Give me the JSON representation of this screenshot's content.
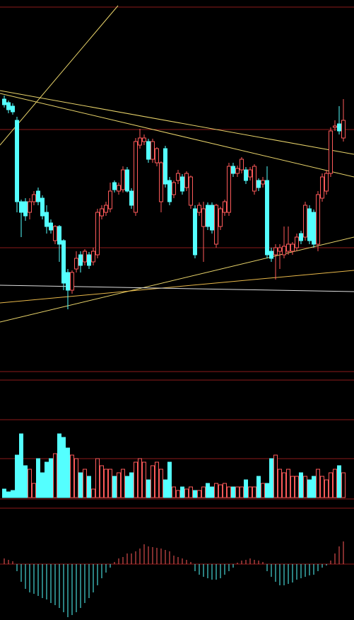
{
  "chart_data": [
    {
      "type": "candlestick",
      "up_color": "#ff5a5a",
      "down_color": "#54ffff",
      "ylim": [
        0,
        525
      ],
      "open": [
        385,
        380,
        375,
        355,
        240,
        240,
        225,
        240,
        255,
        245,
        225,
        210,
        185,
        205,
        185,
        140,
        115,
        145,
        165,
        155,
        165,
        155,
        165,
        220,
        225,
        230,
        267,
        255,
        257,
        285,
        255,
        225,
        320,
        325,
        325,
        300,
        295,
        240,
        315,
        270,
        250,
        270,
        275,
        260,
        235,
        230,
        225,
        205,
        235,
        235,
        180,
        205,
        225,
        225,
        290,
        280,
        285,
        285,
        275,
        255,
        270,
        265,
        270,
        170,
        165,
        170,
        165,
        170,
        170,
        175,
        195,
        190,
        230,
        225,
        180,
        245,
        255,
        280,
        345,
        350,
        330
      ],
      "high": [
        390,
        383,
        379,
        360,
        243,
        245,
        245,
        255,
        260,
        249,
        235,
        215,
        207,
        207,
        187,
        145,
        143,
        170,
        170,
        173,
        169,
        175,
        230,
        235,
        240,
        267,
        270,
        267,
        290,
        289,
        259,
        330,
        343,
        335,
        329,
        329,
        317,
        297,
        319,
        275,
        270,
        285,
        279,
        283,
        277,
        235,
        239,
        240,
        239,
        239,
        237,
        233,
        243,
        295,
        295,
        291,
        303,
        289,
        289,
        293,
        273,
        275,
        290,
        175,
        180,
        180,
        205,
        205,
        183,
        195,
        199,
        240,
        235,
        229,
        255,
        280,
        285,
        345,
        355,
        375,
        385
      ],
      "low": [
        373,
        365,
        363,
        225,
        190,
        213,
        215,
        235,
        235,
        215,
        195,
        195,
        180,
        155,
        115,
        88,
        110,
        140,
        140,
        150,
        145,
        150,
        160,
        215,
        220,
        225,
        253,
        250,
        253,
        253,
        230,
        220,
        315,
        320,
        295,
        295,
        290,
        225,
        260,
        235,
        245,
        265,
        250,
        255,
        230,
        160,
        220,
        155,
        200,
        195,
        175,
        200,
        220,
        220,
        275,
        275,
        280,
        265,
        270,
        250,
        255,
        260,
        160,
        155,
        130,
        145,
        160,
        165,
        165,
        170,
        180,
        185,
        180,
        175,
        170,
        240,
        250,
        275,
        340,
        335,
        325
      ],
      "close": [
        377,
        370,
        367,
        240,
        225,
        220,
        240,
        250,
        240,
        220,
        205,
        200,
        205,
        180,
        125,
        115,
        140,
        160,
        150,
        170,
        150,
        170,
        225,
        230,
        235,
        255,
        257,
        263,
        285,
        255,
        235,
        325,
        330,
        330,
        300,
        325,
        315,
        295,
        265,
        240,
        267,
        280,
        255,
        280,
        275,
        165,
        235,
        230,
        205,
        200,
        235,
        230,
        240,
        290,
        280,
        287,
        300,
        270,
        285,
        290,
        260,
        270,
        165,
        160,
        175,
        175,
        177,
        180,
        180,
        190,
        185,
        235,
        185,
        180,
        250,
        275,
        280,
        340,
        347,
        340,
        355
      ]
    },
    {
      "type": "bar",
      "up_color": "#ff5a5a",
      "down_color": "#54ffff",
      "ylim": [
        0,
        110
      ],
      "values": [
        12,
        8,
        10,
        60,
        90,
        45,
        40,
        20,
        55,
        35,
        50,
        55,
        62,
        90,
        85,
        70,
        60,
        55,
        35,
        40,
        30,
        12,
        55,
        45,
        40,
        40,
        30,
        35,
        40,
        30,
        35,
        50,
        55,
        50,
        25,
        45,
        50,
        40,
        25,
        50,
        15,
        10,
        15,
        12,
        15,
        10,
        10,
        15,
        20,
        15,
        20,
        18,
        20,
        15,
        15,
        15,
        15,
        25,
        15,
        15,
        30,
        20,
        20,
        55,
        60,
        40,
        35,
        40,
        30,
        30,
        35,
        30,
        25,
        30,
        40,
        30,
        25,
        35,
        40,
        45,
        35
      ]
    },
    {
      "type": "bar",
      "up_color": "#ff5a5a",
      "down_color": "#54ffff",
      "ylim": [
        -79,
        79
      ],
      "values": [
        8,
        6,
        4,
        -10,
        -25,
        -35,
        -40,
        -42,
        -45,
        -48,
        -50,
        -55,
        -58,
        -62,
        -68,
        -75,
        -72,
        -68,
        -62,
        -55,
        -48,
        -40,
        -30,
        -20,
        -12,
        -5,
        3,
        8,
        10,
        15,
        15,
        18,
        22,
        28,
        25,
        24,
        23,
        22,
        20,
        18,
        12,
        10,
        8,
        6,
        3,
        -10,
        -15,
        -18,
        -20,
        -22,
        -22,
        -20,
        -15,
        -10,
        -5,
        2,
        5,
        6,
        8,
        6,
        5,
        3,
        -10,
        -18,
        -25,
        -30,
        -30,
        -28,
        -26,
        -22,
        -20,
        -18,
        -16,
        -15,
        -10,
        -5,
        -2,
        5,
        15,
        25,
        32
      ]
    }
  ]
}
